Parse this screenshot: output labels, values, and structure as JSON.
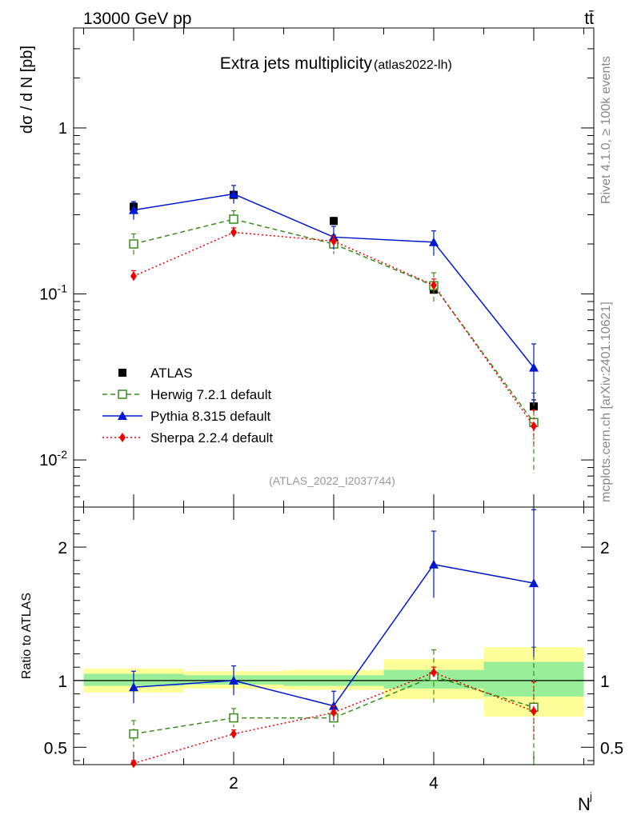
{
  "header": {
    "energy_label": "13000 GeV pp",
    "process_label": "tt̄",
    "rivet_label": "Rivet 4.1.0, ≥ 100k events",
    "source_label": "mcplots.cern.ch [arXiv:2401.10621]"
  },
  "chart_data": [
    {
      "type": "scatter",
      "title": "Extra jets multiplicity",
      "subtitle": "(atlas2022-lh)",
      "analysis_label": "(ATLAS_2022_I2037744)",
      "ylabel": "dσ / d N  [pb]",
      "yscale": "log",
      "ylim": [
        0.0052,
        4.0
      ],
      "xlim": [
        0.4,
        5.6
      ],
      "y_tick_labels": [
        "10^-2",
        "10^-1",
        "1"
      ],
      "x": [
        1,
        2,
        3,
        4,
        5
      ],
      "series": [
        {
          "name": "ATLAS",
          "color": "#000000",
          "marker": "square-filled",
          "values": [
            0.335,
            0.395,
            0.275,
            0.106,
            0.021
          ],
          "errors": [
            0.018,
            0.02,
            0.014,
            0.006,
            0.002
          ]
        },
        {
          "name": "Herwig 7.2.1 default",
          "color": "#3a8c1b",
          "marker": "square-open",
          "line": "dashed",
          "values": [
            0.2,
            0.282,
            0.2,
            0.112,
            0.0168
          ],
          "errors": [
            0.03,
            0.035,
            0.026,
            0.022,
            0.0085
          ]
        },
        {
          "name": "Pythia 8.315 default",
          "color": "#0018d0",
          "marker": "triangle",
          "line": "solid",
          "values": [
            0.32,
            0.4,
            0.22,
            0.205,
            0.036
          ],
          "errors": [
            0.04,
            0.05,
            0.035,
            0.035,
            0.014
          ]
        },
        {
          "name": "Sherpa 2.2.4 default",
          "color": "#ee0000",
          "marker": "diamond",
          "line": "dotted",
          "values": [
            0.128,
            0.235,
            0.208,
            0.113,
            0.016
          ],
          "errors": [
            0.01,
            0.015,
            0.015,
            0.01,
            0.004
          ]
        }
      ]
    },
    {
      "type": "scatter",
      "ylabel": "Ratio to ATLAS",
      "xlabel": "N",
      "xlabel_sup": "j",
      "ylim": [
        0.37,
        2.3
      ],
      "xlim": [
        0.4,
        5.6
      ],
      "x_ticks": [
        2,
        4
      ],
      "y_ticks": [
        0.5,
        1,
        2
      ],
      "reference_line": 1,
      "bins": [
        [
          0.5,
          1.5
        ],
        [
          1.5,
          2.5
        ],
        [
          2.5,
          3.5
        ],
        [
          3.5,
          4.5
        ],
        [
          4.5,
          5.5
        ]
      ],
      "band_inner": [
        [
          0.96,
          1.05
        ],
        [
          0.97,
          1.04
        ],
        [
          0.96,
          1.04
        ],
        [
          0.94,
          1.08
        ],
        [
          0.88,
          1.14
        ]
      ],
      "band_outer": [
        [
          0.91,
          1.09
        ],
        [
          0.94,
          1.07
        ],
        [
          0.93,
          1.08
        ],
        [
          0.86,
          1.16
        ],
        [
          0.73,
          1.25
        ]
      ],
      "series": [
        {
          "name": "Herwig 7.2.1 default",
          "color": "#3a8c1b",
          "marker": "square-open",
          "line": "dashed",
          "values": [
            0.6,
            0.72,
            0.72,
            1.03,
            0.8
          ],
          "errors": [
            0.1,
            0.07,
            0.07,
            0.2,
            0.45
          ]
        },
        {
          "name": "Pythia 8.315 default",
          "color": "#0018d0",
          "marker": "triangle",
          "line": "solid",
          "values": [
            0.95,
            1.0,
            0.81,
            1.87,
            1.73
          ],
          "errors": [
            0.12,
            0.11,
            0.11,
            0.25,
            0.55
          ]
        },
        {
          "name": "Sherpa 2.2.4 default",
          "color": "#ee0000",
          "marker": "diamond",
          "line": "dotted",
          "values": [
            0.38,
            0.6,
            0.76,
            1.06,
            0.77
          ],
          "errors": [
            0.02,
            0.03,
            0.05,
            0.04,
            0.22
          ]
        }
      ]
    }
  ]
}
